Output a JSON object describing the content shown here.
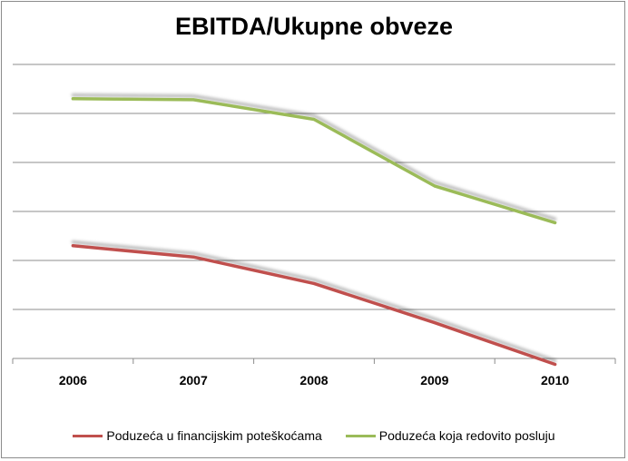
{
  "chart_data": {
    "type": "line",
    "title": "EBITDA/Ukupne obveze",
    "xlabel": "",
    "ylabel": "",
    "categories": [
      "2006",
      "2007",
      "2008",
      "2009",
      "2010"
    ],
    "ylim": [
      0,
      6
    ],
    "grid": true,
    "legend_position": "bottom",
    "series": [
      {
        "name": "Poduzeća u financijskim poteškoćama",
        "color": "#c0504d",
        "values": [
          2.3,
          2.07,
          1.53,
          0.73,
          -0.12
        ]
      },
      {
        "name": "Poduzeća koja redovito posluju",
        "color": "#9bbb59",
        "values": [
          5.3,
          5.28,
          4.88,
          3.52,
          2.77
        ]
      }
    ]
  }
}
